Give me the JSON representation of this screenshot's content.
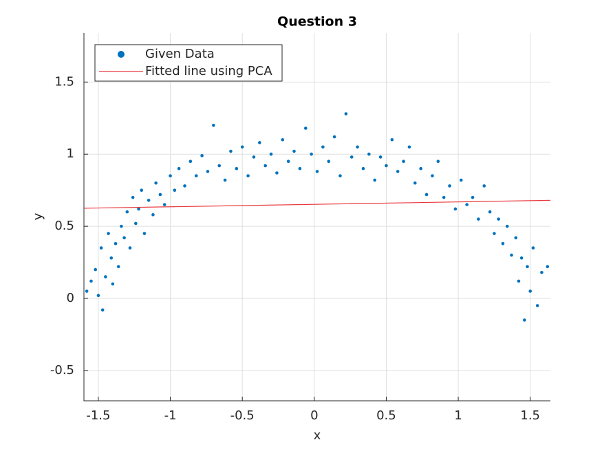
{
  "chart_data": {
    "type": "scatter",
    "title": "Question 3",
    "x_label": "x",
    "y_label": "y",
    "xlim": [
      -1.6,
      1.64
    ],
    "ylim": [
      -0.71,
      1.84
    ],
    "xticks": [
      -1.5,
      -1,
      -0.5,
      0,
      0.5,
      1,
      1.5
    ],
    "yticks": [
      -0.5,
      0,
      0.5,
      1,
      1.5
    ],
    "grid": true,
    "legend": "upper left",
    "series": [
      {
        "name": "Given Data",
        "color": "#0072bd",
        "type": "scatter",
        "x": [
          -1.58,
          -1.55,
          -1.52,
          -1.5,
          -1.48,
          -1.47,
          -1.45,
          -1.43,
          -1.41,
          -1.4,
          -1.38,
          -1.36,
          -1.34,
          -1.32,
          -1.3,
          -1.28,
          -1.26,
          -1.24,
          -1.22,
          -1.2,
          -1.18,
          -1.15,
          -1.12,
          -1.1,
          -1.07,
          -1.04,
          -1.0,
          -0.97,
          -0.94,
          -0.9,
          -0.86,
          -0.82,
          -0.78,
          -0.74,
          -0.7,
          -0.66,
          -0.62,
          -0.58,
          -0.54,
          -0.5,
          -0.46,
          -0.42,
          -0.38,
          -0.34,
          -0.3,
          -0.26,
          -0.22,
          -0.18,
          -0.14,
          -0.1,
          -0.06,
          -0.02,
          0.02,
          0.06,
          0.1,
          0.14,
          0.18,
          0.22,
          0.26,
          0.3,
          0.34,
          0.38,
          0.42,
          0.46,
          0.5,
          0.54,
          0.58,
          0.62,
          0.66,
          0.7,
          0.74,
          0.78,
          0.82,
          0.86,
          0.9,
          0.94,
          0.98,
          1.02,
          1.06,
          1.1,
          1.14,
          1.18,
          1.22,
          1.25,
          1.28,
          1.31,
          1.34,
          1.37,
          1.4,
          1.42,
          1.44,
          1.46,
          1.48,
          1.5,
          1.52,
          1.55,
          1.58,
          1.62
        ],
        "values": [
          0.05,
          0.12,
          0.2,
          0.02,
          0.35,
          -0.08,
          0.15,
          0.45,
          0.28,
          0.1,
          0.38,
          0.22,
          0.5,
          0.42,
          0.6,
          0.35,
          0.7,
          0.52,
          0.62,
          0.75,
          0.45,
          0.68,
          0.58,
          0.8,
          0.72,
          0.65,
          0.85,
          0.75,
          0.9,
          0.78,
          0.95,
          0.85,
          0.99,
          0.88,
          1.2,
          0.92,
          0.82,
          1.02,
          0.9,
          1.05,
          0.85,
          0.98,
          1.08,
          0.92,
          1.0,
          0.87,
          1.1,
          0.95,
          1.02,
          0.9,
          1.18,
          1.0,
          0.88,
          1.05,
          0.95,
          1.12,
          0.85,
          1.28,
          0.98,
          1.05,
          0.9,
          1.0,
          0.82,
          0.98,
          0.92,
          1.1,
          0.88,
          0.95,
          1.05,
          0.8,
          0.9,
          0.72,
          0.85,
          0.95,
          0.7,
          0.78,
          0.62,
          0.82,
          0.65,
          0.7,
          0.55,
          0.78,
          0.6,
          0.45,
          0.55,
          0.38,
          0.5,
          0.3,
          0.42,
          0.12,
          0.28,
          -0.15,
          0.22,
          0.05,
          0.35,
          -0.05,
          0.18,
          0.22
        ]
      },
      {
        "name": "Fitted line using PCA",
        "color": "#e8383d",
        "type": "line",
        "x": [
          -1.6,
          1.64
        ],
        "values": [
          0.625,
          0.68
        ]
      }
    ]
  }
}
